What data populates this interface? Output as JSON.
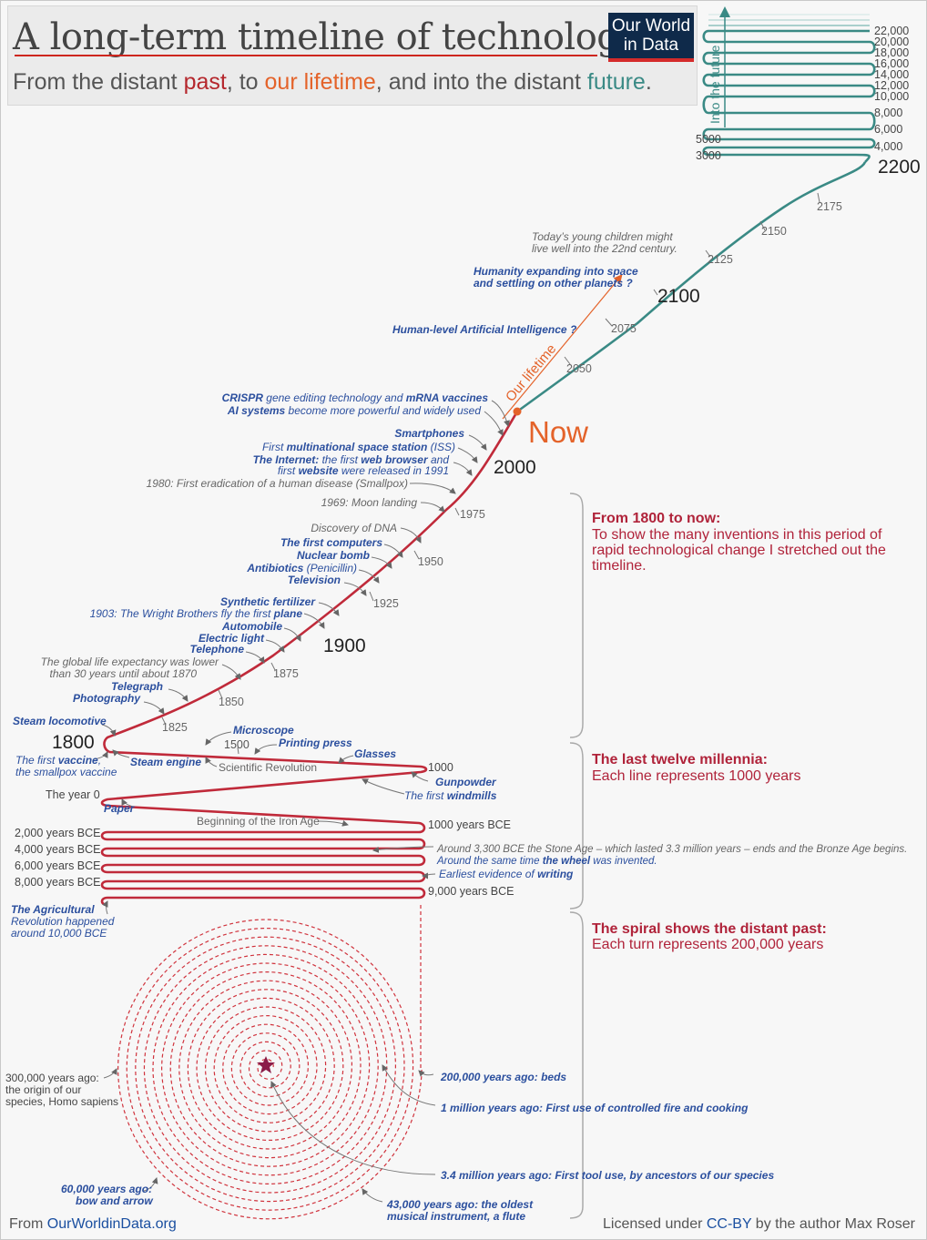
{
  "header": {
    "title": "A long-term timeline of technology",
    "subtitle_1": "From the distant ",
    "subtitle_past": "past",
    "subtitle_2": ", to ",
    "subtitle_life": "our lifetime",
    "subtitle_3": ", and into the distant ",
    "subtitle_future": "future",
    "subtitle_4": ".",
    "logo_line1": "Our World",
    "logo_line2": "in Data"
  },
  "colors": {
    "past": "#b5272d",
    "lifetime": "#e4632a",
    "future": "#3a8a85",
    "blue_text": "#2b4f9e"
  },
  "future_axis": {
    "label": "Into the future",
    "right_years": [
      "22,000",
      "20,000",
      "18,000",
      "16,000",
      "14,000",
      "12,000",
      "10,000",
      "8,000",
      "6,000",
      "4,000"
    ],
    "left_years": [
      "5000",
      "3000"
    ],
    "y2200": "2200"
  },
  "future_ticks": [
    "2175",
    "2150",
    "2125",
    "2100",
    "2075",
    "2050"
  ],
  "future_notes": {
    "children": [
      "Today’s young children might",
      "live well into the 22nd century."
    ],
    "space": [
      "Humanity expanding into space",
      "and settling on other planets ?"
    ],
    "agi": "Human-level Artificial Intelligence ?",
    "lifetime": "Our lifetime"
  },
  "now_label": "Now",
  "modern": {
    "y2000": "2000",
    "y1975": "1975",
    "y1950": "1950",
    "y1925": "1925",
    "y1900": "1900",
    "y1875": "1875",
    "y1850": "1850",
    "y1825": "1825",
    "y1800": "1800",
    "crispr_a": "CRISPR",
    "crispr_b": " gene editing technology and ",
    "crispr_c": "mRNA vaccines",
    "ai_a": "AI systems",
    "ai_b": " become more powerful and widely used",
    "smartphones": "Smartphones",
    "iss_a": "First ",
    "iss_b": "multinational space station",
    "iss_c": " (ISS)",
    "internet_a": "The Internet:",
    "internet_b": " the first ",
    "internet_c": "web browser",
    "internet_d": " and",
    "internet2_a": "first ",
    "internet2_b": "website",
    "internet2_c": " were released in 1991",
    "smallpox": "1980: First eradication of a human disease (Smallpox)",
    "moon": "1969: Moon landing",
    "dna": "Discovery of DNA",
    "computers": "The first computers",
    "nuclear": "Nuclear bomb",
    "antibiotics_a": "Antibiotics",
    "antibiotics_b": " (Penicillin)",
    "television": "Television",
    "fertilizer": "Synthetic fertilizer",
    "wright_a": "1903: The Wright Brothers fly the first ",
    "wright_b": "plane",
    "automobile": "Automobile",
    "electric": "Electric light",
    "telephone": "Telephone",
    "life_exp": [
      "The global life expectancy was lower",
      "than 30 years until about 1870"
    ],
    "telegraph": "Telegraph",
    "photography": "Photography",
    "locomotive": "Steam locomotive",
    "vaccine_a": "The first ",
    "vaccine_b": "vaccine",
    "vaccine_c": ",",
    "vaccine2": "the smallpox vaccine",
    "steam_engine": "Steam engine"
  },
  "millennia": {
    "microscope": "Microscope",
    "y1500": "1500",
    "printing": "Printing press",
    "glasses": "Glasses",
    "sci_rev": "Scientific Revolution",
    "y1000": "1000",
    "gunpowder": "Gunpowder",
    "windmills_a": "The first ",
    "windmills_b": "windmills",
    "year0": "The year 0",
    "paper": "Paper",
    "iron_age": "Beginning of the Iron Age",
    "bce1000": "1000 years BCE",
    "bce2000": "2,000 years BCE",
    "bce4000": "4,000 years BCE",
    "bce6000": "6,000 years BCE",
    "bce8000": "8,000 years BCE",
    "bronze": "Around 3,300 BCE the Stone Age – which lasted 3.3 million years – ends and the Bronze Age begins.",
    "wheel_a": "Around the same time ",
    "wheel_b": "the wheel",
    "wheel_c": " was invented.",
    "writing_a": "Earliest evidence of ",
    "writing_b": "writing",
    "bce9000": "9,000 years BCE",
    "agri": [
      "The Agricultural",
      "Revolution happened",
      "around 10,000 BCE"
    ]
  },
  "spiral": {
    "sapiens": [
      "300,000 years ago:",
      "the origin of our",
      "species, Homo sapiens"
    ],
    "beds": "200,000 years ago: beds",
    "fire": "1 million years ago: First use of controlled fire and cooking",
    "tools": "3.4 million years ago: First tool use, by ancestors of our species",
    "flute": [
      "43,000 years ago: the oldest",
      "musical instrument, a flute"
    ],
    "bow": [
      "60,000 years ago:",
      "bow and arrow"
    ]
  },
  "sidebar": {
    "s1_head": "From 1800 to now:",
    "s1_text": "To show the many inventions in this period of rapid technological change I stretched out the timeline.",
    "s2_head": "The last twelve millennia:",
    "s2_text": "Each line represents 1000 years",
    "s3_head": "The spiral shows the distant past:",
    "s3_text": "Each turn represents 200,000 years"
  },
  "footer": {
    "left_a": "From ",
    "left_b": "OurWorldinData.org",
    "right_a": "Licensed under ",
    "right_b": "CC-BY",
    "right_c": " by the author Max Roser"
  }
}
